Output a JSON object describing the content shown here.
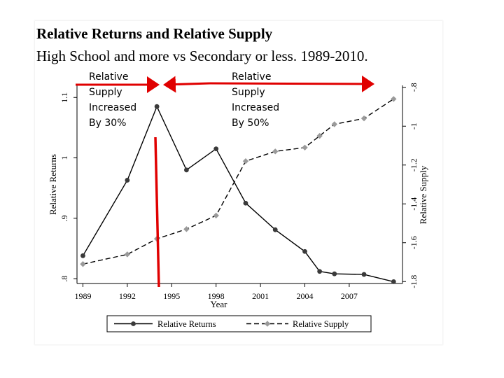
{
  "chart_data": {
    "type": "line",
    "title": "Relative Returns and Relative Supply",
    "subtitle": "High School and more vs Secondary or less. 1989-2010.",
    "xlabel": "Year",
    "ylabel_left": "Relative Returns",
    "ylabel_right": "Relative Supply",
    "xlim": [
      1988.6,
      2010.6
    ],
    "ylim_left": [
      0.792,
      1.12
    ],
    "ylim_right": [
      -1.81,
      -0.79
    ],
    "x_ticks": [
      1989,
      1992,
      1995,
      1998,
      2001,
      2004,
      2007
    ],
    "x_tick_labels": [
      "1989",
      "1992",
      "1995",
      "1998",
      "2001",
      "2004",
      "2007"
    ],
    "y_left_ticks": [
      0.8,
      0.9,
      1.0,
      1.1
    ],
    "y_left_tick_labels": [
      ".8",
      ".9",
      "1",
      "1.1"
    ],
    "y_right_ticks": [
      -1.8,
      -1.6,
      -1.4,
      -1.2,
      -1.0,
      -0.8
    ],
    "y_right_tick_labels": [
      "-1.8",
      "-1.6",
      "-1.4",
      "-1.2",
      "-1",
      "-.8"
    ],
    "grid": false,
    "legend_position": "bottom",
    "series": [
      {
        "name": "Relative Returns",
        "axis": "left",
        "style": "solid",
        "color": "#3a3a3a",
        "x": [
          1989,
          1992,
          1994,
          1996,
          1998,
          2000,
          2002,
          2004,
          2005,
          2006,
          2008,
          2010
        ],
        "y": [
          0.838,
          0.963,
          1.085,
          0.98,
          1.015,
          0.925,
          0.881,
          0.845,
          0.812,
          0.808,
          0.807,
          0.795
        ]
      },
      {
        "name": "Relative Supply",
        "axis": "right",
        "style": "dashed",
        "color": "#9a9a9a",
        "x": [
          1989,
          1992,
          1994,
          1996,
          1998,
          2000,
          2002,
          2004,
          2005,
          2006,
          2008,
          2010
        ],
        "y": [
          -1.71,
          -1.66,
          -1.58,
          -1.53,
          -1.46,
          -1.18,
          -1.13,
          -1.11,
          -1.05,
          -0.99,
          -0.96,
          -0.86
        ]
      }
    ]
  },
  "annotations": {
    "left": [
      "Relative",
      "Supply",
      "Increased",
      "By 30%"
    ],
    "right": [
      "Relative",
      "Supply",
      "Increased",
      "By 50%"
    ],
    "marker_color": "#e00000"
  }
}
